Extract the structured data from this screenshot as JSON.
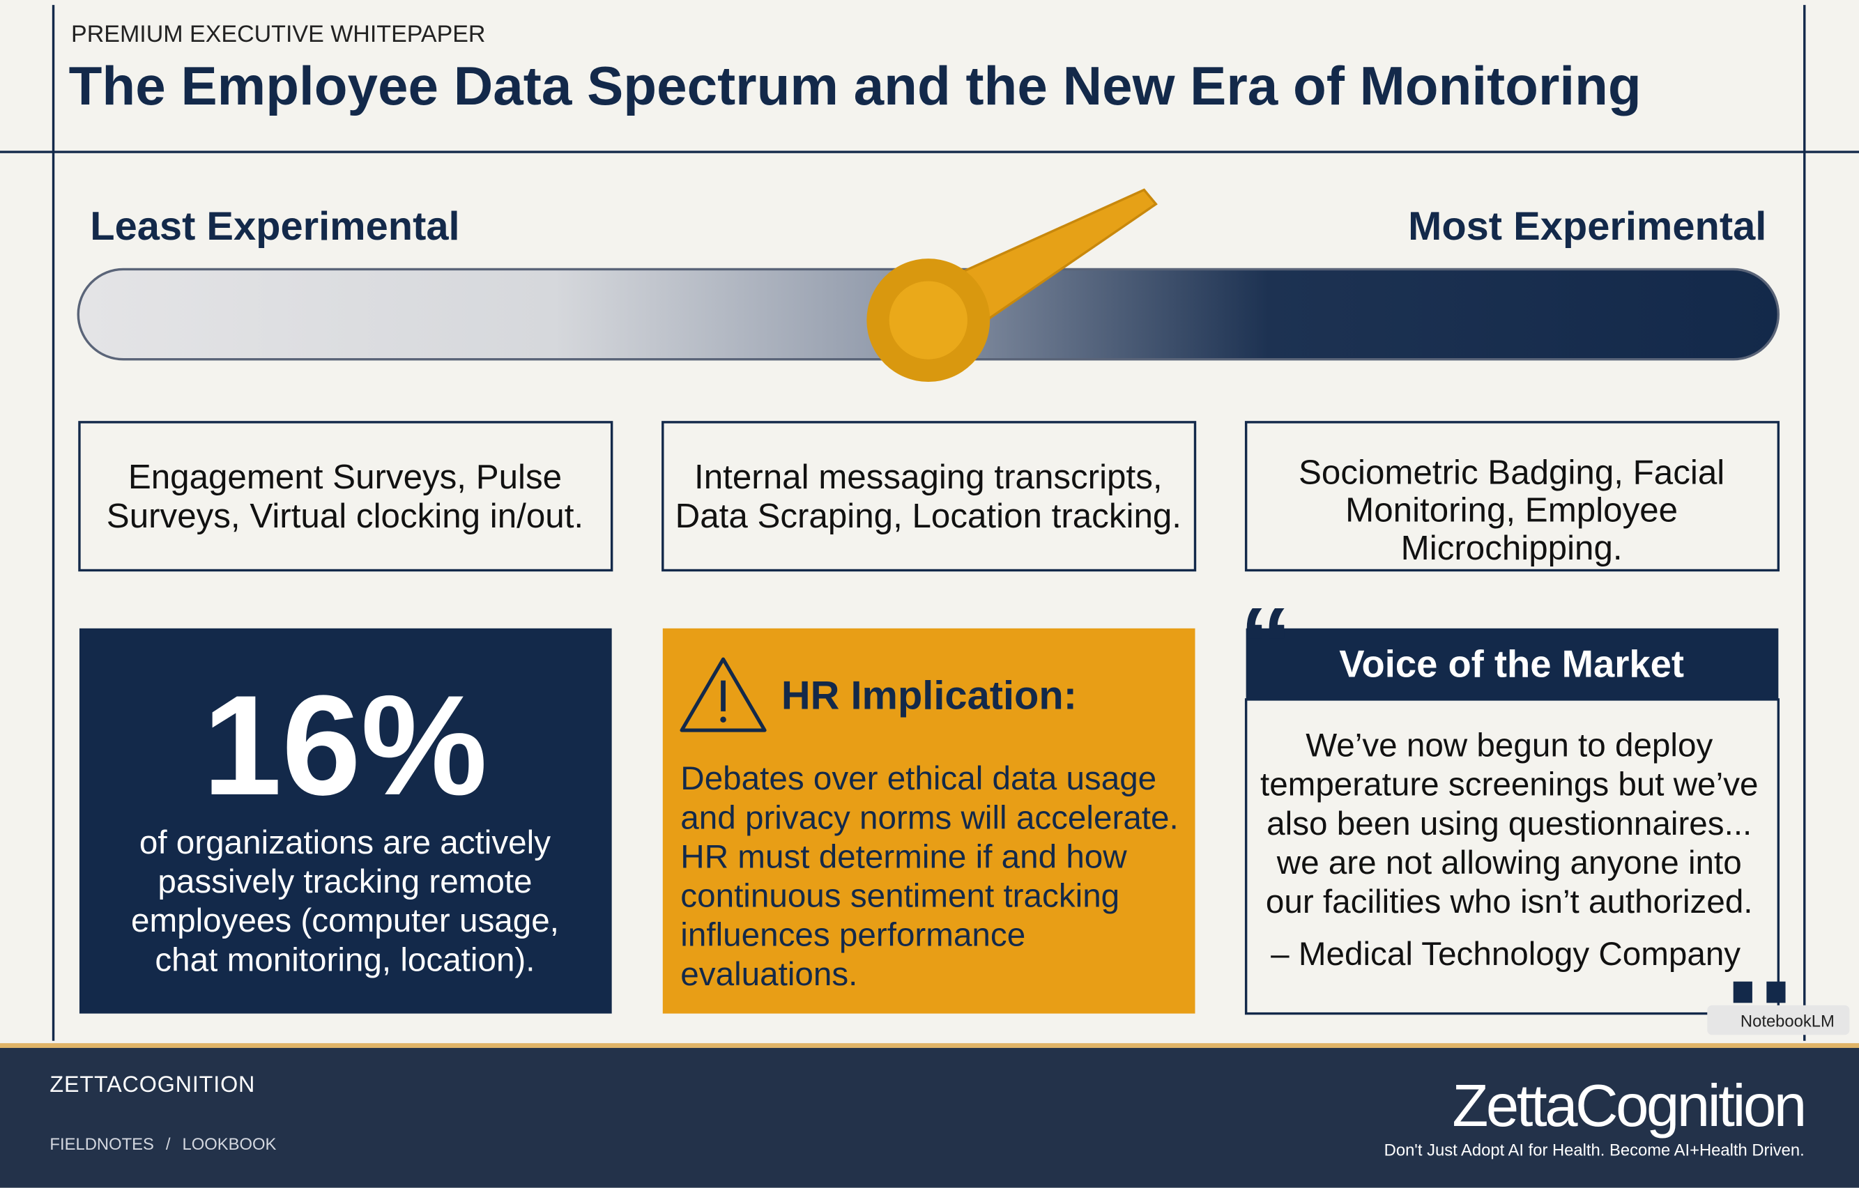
{
  "header": {
    "eyebrow": "PREMIUM EXECUTIVE WHITEPAPER",
    "title": "The Employee Data Spectrum and the New Era of Monitoring"
  },
  "spectrum": {
    "left_label": "Least Experimental",
    "right_label": "Most Experimental"
  },
  "tiers": [
    {
      "lines": [
        "Engagement Surveys, Pulse",
        "Surveys, Virtual clocking in/out."
      ]
    },
    {
      "lines": [
        "Internal messaging transcripts,",
        "Data Scraping, Location tracking."
      ]
    },
    {
      "lines": [
        "Sociometric Badging, Facial",
        "Monitoring, Employee",
        "Microchipping."
      ]
    }
  ],
  "stat": {
    "value": "16%",
    "lines": [
      "of organizations are actively",
      "passively tracking remote",
      "employees (computer usage,",
      "chat monitoring, location)."
    ]
  },
  "implication": {
    "title": "HR Implication:",
    "lines": [
      "Debates over ethical data usage",
      "and privacy norms will accelerate.",
      "HR must determine if and how",
      "continuous sentiment tracking",
      "influences performance",
      "evaluations."
    ]
  },
  "quote": {
    "title": "Voice of the Market",
    "lines": [
      "We’ve now begun to deploy",
      "temperature screenings but we’ve",
      "also been using questionnaires...",
      "we are not allowing anyone into",
      "our facilities who isn’t authorized."
    ],
    "attribution": "– Medical Technology Company"
  },
  "watermark": "NotebookLM",
  "footer": {
    "brand": "ZETTACOGNITION",
    "nav": [
      "FIELDNOTES",
      "LOOKBOOK"
    ],
    "separator": "/",
    "logo": "ZettaCognition",
    "tagline": "Don't Just Adopt AI for Health. Become AI+Health Driven."
  }
}
